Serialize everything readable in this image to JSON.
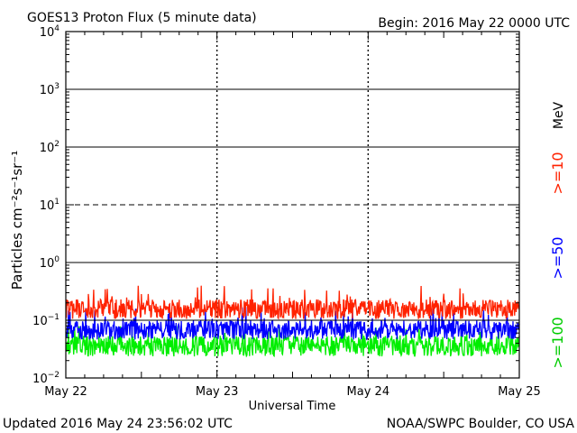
{
  "header": {
    "title": "GOES13 Proton Flux (5 minute data)",
    "begin": "Begin: 2016 May 22 0000 UTC"
  },
  "footer": {
    "updated": "Updated 2016 May 24 23:56:02 UTC",
    "credit": "NOAA/SWPC Boulder, CO USA"
  },
  "legend": {
    "unit": "MeV",
    "items": [
      ">=10",
      ">=50",
      ">=100"
    ]
  },
  "chart_data": {
    "type": "line",
    "title": "GOES13 Proton Flux (5 minute data)",
    "xlabel": "Universal Time",
    "ylabel": "Particles cm⁻²s⁻¹sr⁻¹",
    "yscale": "log",
    "ylim": [
      0.01,
      10000
    ],
    "xlim": [
      "2016-05-22 00:00",
      "2016-05-25 00:00"
    ],
    "x_tick_labels": [
      "May 22",
      "May 23",
      "May 24",
      "May 25"
    ],
    "y_tick_exponents": [
      -2,
      -1,
      0,
      1,
      2,
      3,
      4
    ],
    "reference_lines": [
      {
        "value": 10,
        "style": "dashed"
      },
      {
        "value": 0.1,
        "style": "solid"
      }
    ],
    "series": [
      {
        "name": ">=10",
        "color": "#ff2200",
        "typical": 0.15,
        "low": 0.09,
        "high": 0.4
      },
      {
        "name": ">=50",
        "color": "#0000ff",
        "typical": 0.065,
        "low": 0.04,
        "high": 0.17
      },
      {
        "name": ">=100",
        "color": "#00ee00",
        "typical": 0.035,
        "low": 0.02,
        "high": 0.08
      }
    ]
  }
}
